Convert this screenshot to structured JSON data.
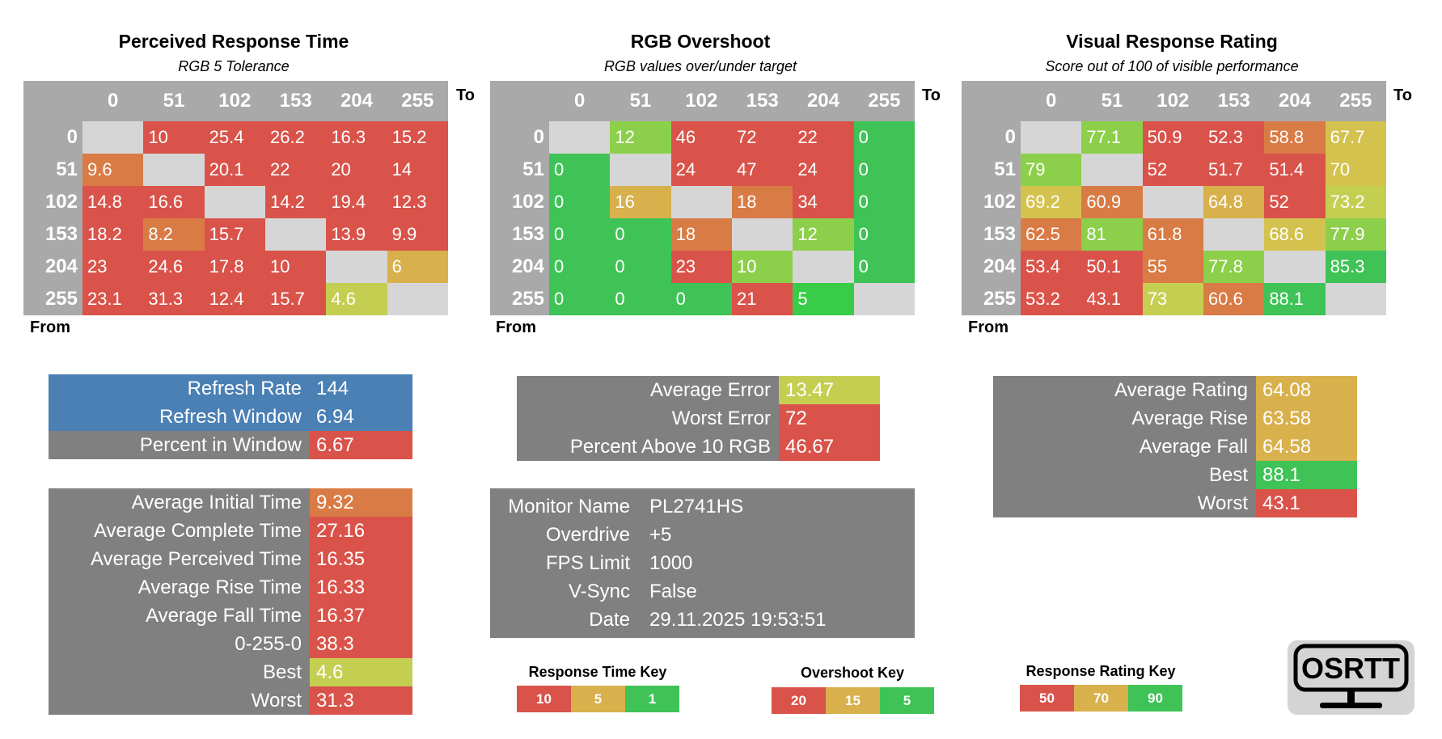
{
  "colors": {
    "red": "#d9534a",
    "orange": "#d97b45",
    "gold": "#d8b04c",
    "yellow": "#d3c24e",
    "yellowgreen": "#c4cf52",
    "lightgreen": "#8ccf4a",
    "green": "#3fc356",
    "brightgreen": "#39cc48",
    "header_gray": "#a9a9a9",
    "diag_gray": "#d6d6d6",
    "panel_gray": "#808080",
    "blue": "#4a80b4"
  },
  "axis_ticks": [
    "0",
    "51",
    "102",
    "153",
    "204",
    "255"
  ],
  "axis_to_label": "To",
  "axis_from_label": "From",
  "chart_data": [
    {
      "type": "heatmap",
      "title": "Perceived Response Time",
      "subtitle": "RGB 5 Tolerance",
      "rows": [
        "0",
        "51",
        "102",
        "153",
        "204",
        "255"
      ],
      "cols": [
        "0",
        "51",
        "102",
        "153",
        "204",
        "255"
      ],
      "values": [
        [
          null,
          "10",
          "25.4",
          "26.2",
          "16.3",
          "15.2"
        ],
        [
          "9.6",
          null,
          "20.1",
          "22",
          "20",
          "14"
        ],
        [
          "14.8",
          "16.6",
          null,
          "14.2",
          "19.4",
          "12.3"
        ],
        [
          "18.2",
          "8.2",
          "15.7",
          null,
          "13.9",
          "9.9"
        ],
        [
          "23",
          "24.6",
          "17.8",
          "10",
          null,
          "6"
        ],
        [
          "23.1",
          "31.3",
          "12.4",
          "15.7",
          "4.6",
          null
        ]
      ],
      "cell_colors": [
        [
          null,
          "red",
          "red",
          "red",
          "red",
          "red"
        ],
        [
          "orange",
          null,
          "red",
          "red",
          "red",
          "red"
        ],
        [
          "red",
          "red",
          null,
          "red",
          "red",
          "red"
        ],
        [
          "red",
          "orange",
          "red",
          null,
          "red",
          "red"
        ],
        [
          "red",
          "red",
          "red",
          "red",
          null,
          "gold"
        ],
        [
          "red",
          "red",
          "red",
          "red",
          "yellowgreen",
          null
        ]
      ]
    },
    {
      "type": "heatmap",
      "title": "RGB Overshoot",
      "subtitle": "RGB values over/under target",
      "rows": [
        "0",
        "51",
        "102",
        "153",
        "204",
        "255"
      ],
      "cols": [
        "0",
        "51",
        "102",
        "153",
        "204",
        "255"
      ],
      "values": [
        [
          null,
          "12",
          "46",
          "72",
          "22",
          "0"
        ],
        [
          "0",
          null,
          "24",
          "47",
          "24",
          "0"
        ],
        [
          "0",
          "16",
          null,
          "18",
          "34",
          "0"
        ],
        [
          "0",
          "0",
          "18",
          null,
          "12",
          "0"
        ],
        [
          "0",
          "0",
          "23",
          "10",
          null,
          "0"
        ],
        [
          "0",
          "0",
          "0",
          "21",
          "5",
          null
        ]
      ],
      "cell_colors": [
        [
          null,
          "lightgreen",
          "red",
          "red",
          "red",
          "green"
        ],
        [
          "green",
          null,
          "red",
          "red",
          "red",
          "green"
        ],
        [
          "green",
          "gold",
          null,
          "orange",
          "red",
          "green"
        ],
        [
          "green",
          "green",
          "orange",
          null,
          "lightgreen",
          "green"
        ],
        [
          "green",
          "green",
          "red",
          "lightgreen",
          null,
          "green"
        ],
        [
          "green",
          "green",
          "green",
          "red",
          "brightgreen",
          null
        ]
      ]
    },
    {
      "type": "heatmap",
      "title": "Visual Response Rating",
      "subtitle": "Score out of 100 of visible performance",
      "rows": [
        "0",
        "51",
        "102",
        "153",
        "204",
        "255"
      ],
      "cols": [
        "0",
        "51",
        "102",
        "153",
        "204",
        "255"
      ],
      "values": [
        [
          null,
          "77.1",
          "50.9",
          "52.3",
          "58.8",
          "67.7"
        ],
        [
          "79",
          null,
          "52",
          "51.7",
          "51.4",
          "70"
        ],
        [
          "69.2",
          "60.9",
          null,
          "64.8",
          "52",
          "73.2"
        ],
        [
          "62.5",
          "81",
          "61.8",
          null,
          "68.6",
          "77.9"
        ],
        [
          "53.4",
          "50.1",
          "55",
          "77.8",
          null,
          "85.3"
        ],
        [
          "53.2",
          "43.1",
          "73",
          "60.6",
          "88.1",
          null
        ]
      ],
      "cell_colors": [
        [
          null,
          "lightgreen",
          "red",
          "red",
          "orange",
          "yellow"
        ],
        [
          "lightgreen",
          null,
          "red",
          "red",
          "red",
          "yellow"
        ],
        [
          "yellow",
          "orange",
          null,
          "gold",
          "red",
          "yellowgreen"
        ],
        [
          "orange",
          "lightgreen",
          "orange",
          null,
          "yellow",
          "lightgreen"
        ],
        [
          "red",
          "red",
          "orange",
          "lightgreen",
          null,
          "green"
        ],
        [
          "red",
          "red",
          "yellowgreen",
          "orange",
          "green",
          null
        ]
      ]
    }
  ],
  "refresh_stats": [
    {
      "label": "Refresh Rate",
      "value": "144",
      "label_bg": "blue",
      "value_bg": "blue"
    },
    {
      "label": "Refresh Window",
      "value": "6.94",
      "label_bg": "blue",
      "value_bg": "blue"
    },
    {
      "label": "Percent in Window",
      "value": "6.67",
      "label_bg": "panel_gray",
      "value_bg": "red"
    }
  ],
  "time_stats": [
    {
      "label": "Average Initial Time",
      "value": "9.32",
      "value_bg": "orange"
    },
    {
      "label": "Average Complete Time",
      "value": "27.16",
      "value_bg": "red"
    },
    {
      "label": "Average Perceived Time",
      "value": "16.35",
      "value_bg": "red"
    },
    {
      "label": "Average Rise Time",
      "value": "16.33",
      "value_bg": "red"
    },
    {
      "label": "Average Fall Time",
      "value": "16.37",
      "value_bg": "red"
    },
    {
      "label": "0-255-0",
      "value": "38.3",
      "value_bg": "red"
    },
    {
      "label": "Best",
      "value": "4.6",
      "value_bg": "yellowgreen"
    },
    {
      "label": "Worst",
      "value": "31.3",
      "value_bg": "red"
    }
  ],
  "error_stats": [
    {
      "label": "Average Error",
      "value": "13.47",
      "value_bg": "yellowgreen"
    },
    {
      "label": "Worst Error",
      "value": "72",
      "value_bg": "red"
    },
    {
      "label": "Percent Above 10 RGB",
      "value": "46.67",
      "value_bg": "red"
    }
  ],
  "monitor_info": [
    {
      "label": "Monitor Name",
      "value": "PL2741HS"
    },
    {
      "label": "Overdrive",
      "value": "+5"
    },
    {
      "label": "FPS Limit",
      "value": "1000"
    },
    {
      "label": "V-Sync",
      "value": "False"
    },
    {
      "label": "Date",
      "value": "29.11.2025 19:53:51"
    }
  ],
  "rating_stats": [
    {
      "label": "Average Rating",
      "value": "64.08",
      "value_bg": "gold"
    },
    {
      "label": "Average Rise",
      "value": "63.58",
      "value_bg": "gold"
    },
    {
      "label": "Average Fall",
      "value": "64.58",
      "value_bg": "gold"
    },
    {
      "label": "Best",
      "value": "88.1",
      "value_bg": "green"
    },
    {
      "label": "Worst",
      "value": "43.1",
      "value_bg": "red"
    }
  ],
  "keys": [
    {
      "title": "Response Time Key",
      "cells": [
        {
          "label": "10",
          "color": "red"
        },
        {
          "label": "5",
          "color": "gold"
        },
        {
          "label": "1",
          "color": "green"
        }
      ]
    },
    {
      "title": "Overshoot Key",
      "cells": [
        {
          "label": "20",
          "color": "red"
        },
        {
          "label": "15",
          "color": "gold"
        },
        {
          "label": "5",
          "color": "green"
        }
      ]
    },
    {
      "title": "Response Rating Key",
      "cells": [
        {
          "label": "50",
          "color": "red"
        },
        {
          "label": "70",
          "color": "gold"
        },
        {
          "label": "90",
          "color": "green"
        }
      ]
    }
  ],
  "logo_text": "OSRTT"
}
